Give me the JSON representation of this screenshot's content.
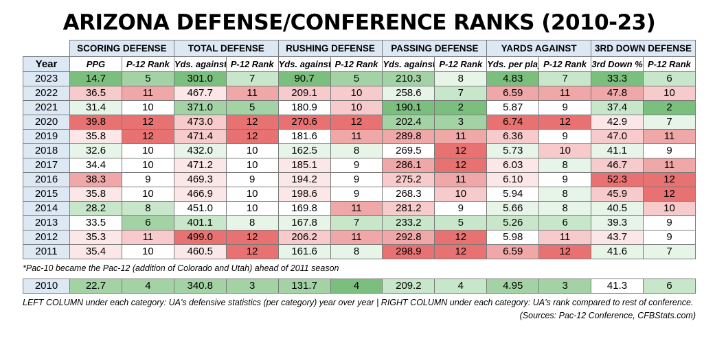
{
  "title": "ARIZONA DEFENSE/CONFERENCE RANKS (2010-23)",
  "palette": {
    "G3": "#7bbf7e",
    "G2": "#a3d3a5",
    "G1": "#c8e6c9",
    "G0": "#e7f4e8",
    "W": "#ffffff",
    "R0": "#fce7e8",
    "R1": "#f7cacb",
    "R2": "#efa7a8",
    "R3": "#e87272"
  },
  "year_header": "Year",
  "groups": [
    "SCORING DEFENSE",
    "TOTAL DEFENSE",
    "RUSHING DEFENSE",
    "PASSING DEFENSE",
    "YARDS AGAINST",
    "3RD DOWN DEFENSE"
  ],
  "subheaders": [
    "PPG",
    "P-12 Rank",
    "Yds. against",
    "P-12 Rank",
    "Yds. against",
    "P-12 Rank",
    "Yds. against",
    "P-12 Rank",
    "Yds. per play",
    "P-12 Rank",
    "3rd Down %",
    "P-12 Rank"
  ],
  "rows": [
    {
      "year": "2023",
      "values": [
        "14.7",
        "5",
        "301.0",
        "7",
        "90.7",
        "5",
        "210.3",
        "8",
        "4.83",
        "7",
        "33.3",
        "6"
      ],
      "colors": [
        "G3",
        "G2",
        "G3",
        "G1",
        "G3",
        "G2",
        "G2",
        "G0",
        "G3",
        "G1",
        "G3",
        "G1"
      ]
    },
    {
      "year": "2022",
      "values": [
        "36.5",
        "11",
        "467.7",
        "11",
        "209.1",
        "10",
        "258.6",
        "7",
        "6.59",
        "11",
        "47.8",
        "10"
      ],
      "colors": [
        "R1",
        "R2",
        "R0",
        "R2",
        "R1",
        "R1",
        "G0",
        "G1",
        "R2",
        "R2",
        "R2",
        "R1"
      ]
    },
    {
      "year": "2021",
      "values": [
        "31.4",
        "10",
        "371.0",
        "5",
        "180.9",
        "10",
        "190.1",
        "2",
        "5.87",
        "9",
        "37.4",
        "2"
      ],
      "colors": [
        "G0",
        "W",
        "G2",
        "G2",
        "W",
        "R1",
        "G3",
        "G3",
        "W",
        "W",
        "G1",
        "G3"
      ]
    },
    {
      "year": "2020",
      "values": [
        "39.8",
        "12",
        "473.0",
        "12",
        "270.6",
        "12",
        "202.4",
        "3",
        "6.74",
        "12",
        "42.9",
        "7"
      ],
      "colors": [
        "R3",
        "R3",
        "R1",
        "R3",
        "R3",
        "R3",
        "G2",
        "G2",
        "R3",
        "R3",
        "R0",
        "G0"
      ]
    },
    {
      "year": "2019",
      "values": [
        "35.8",
        "12",
        "471.4",
        "12",
        "181.6",
        "11",
        "289.8",
        "11",
        "6.36",
        "9",
        "47.0",
        "11"
      ],
      "colors": [
        "R0",
        "R3",
        "R1",
        "R3",
        "W",
        "R2",
        "R2",
        "R2",
        "R1",
        "W",
        "R1",
        "R2"
      ]
    },
    {
      "year": "2018",
      "values": [
        "32.6",
        "10",
        "432.0",
        "10",
        "162.5",
        "8",
        "269.5",
        "12",
        "5.73",
        "10",
        "41.1",
        "9"
      ],
      "colors": [
        "G0",
        "W",
        "G0",
        "W",
        "G0",
        "G0",
        "W",
        "R3",
        "G0",
        "R1",
        "G0",
        "W"
      ]
    },
    {
      "year": "2017",
      "values": [
        "34.4",
        "10",
        "471.2",
        "10",
        "185.1",
        "9",
        "286.1",
        "12",
        "6.03",
        "8",
        "46.7",
        "11"
      ],
      "colors": [
        "W",
        "W",
        "R0",
        "W",
        "R0",
        "W",
        "R2",
        "R3",
        "R0",
        "G0",
        "R1",
        "R2"
      ]
    },
    {
      "year": "2016",
      "values": [
        "38.3",
        "9",
        "469.3",
        "9",
        "194.2",
        "9",
        "275.2",
        "11",
        "6.10",
        "9",
        "52.3",
        "12"
      ],
      "colors": [
        "R2",
        "W",
        "R0",
        "W",
        "R0",
        "W",
        "R1",
        "R2",
        "R0",
        "W",
        "R3",
        "R3"
      ]
    },
    {
      "year": "2015",
      "values": [
        "35.8",
        "10",
        "466.9",
        "10",
        "198.6",
        "9",
        "268.3",
        "10",
        "5.94",
        "8",
        "45.9",
        "12"
      ],
      "colors": [
        "R0",
        "W",
        "R0",
        "W",
        "R0",
        "W",
        "W",
        "R1",
        "W",
        "G0",
        "R1",
        "R3"
      ]
    },
    {
      "year": "2014",
      "values": [
        "28.2",
        "8",
        "451.0",
        "10",
        "169.8",
        "11",
        "281.2",
        "9",
        "5.66",
        "8",
        "40.5",
        "10"
      ],
      "colors": [
        "G1",
        "G1",
        "W",
        "W",
        "W",
        "R2",
        "R1",
        "W",
        "G0",
        "G0",
        "G0",
        "R1"
      ]
    },
    {
      "year": "2013",
      "values": [
        "33.5",
        "6",
        "401.1",
        "8",
        "167.8",
        "7",
        "233.2",
        "5",
        "5.26",
        "6",
        "39.3",
        "9"
      ],
      "colors": [
        "W",
        "G2",
        "G1",
        "G0",
        "G0",
        "G1",
        "G1",
        "G1",
        "G1",
        "G1",
        "G0",
        "W"
      ]
    },
    {
      "year": "2012",
      "values": [
        "35.3",
        "11",
        "499.0",
        "12",
        "206.2",
        "11",
        "292.8",
        "12",
        "5.98",
        "11",
        "43.7",
        "9"
      ],
      "colors": [
        "R0",
        "R1",
        "R3",
        "R3",
        "R1",
        "R2",
        "R2",
        "R3",
        "W",
        "R1",
        "R0",
        "W"
      ]
    },
    {
      "year": "2011",
      "values": [
        "35.4",
        "10",
        "460.5",
        "12",
        "161.6",
        "8",
        "298.9",
        "12",
        "6.59",
        "12",
        "41.6",
        "7"
      ],
      "colors": [
        "R0",
        "W",
        "R0",
        "R3",
        "G0",
        "G0",
        "R3",
        "R3",
        "R2",
        "R3",
        "G0",
        "G0"
      ]
    }
  ],
  "row2010": {
    "year": "2010",
    "values": [
      "22.7",
      "4",
      "340.8",
      "3",
      "131.7",
      "4",
      "209.2",
      "4",
      "4.95",
      "3",
      "41.3",
      "6"
    ],
    "colors": [
      "G2",
      "G2",
      "G2",
      "G2",
      "G2",
      "G3",
      "G1",
      "G1",
      "G2",
      "G2",
      "W",
      "G1"
    ]
  },
  "footnote": "*Pac-10 became the Pac-12 (addition of Colorado and Utah) ahead of 2011 season",
  "legend_note": "LEFT COLUMN under each category: UA's defensive statistics (per category) year over year | RIGHT COLUMN under each category: UA's rank compared to rest of conference.",
  "sources": "(Sources: Pac-12 Conference, CFBStats.com)"
}
